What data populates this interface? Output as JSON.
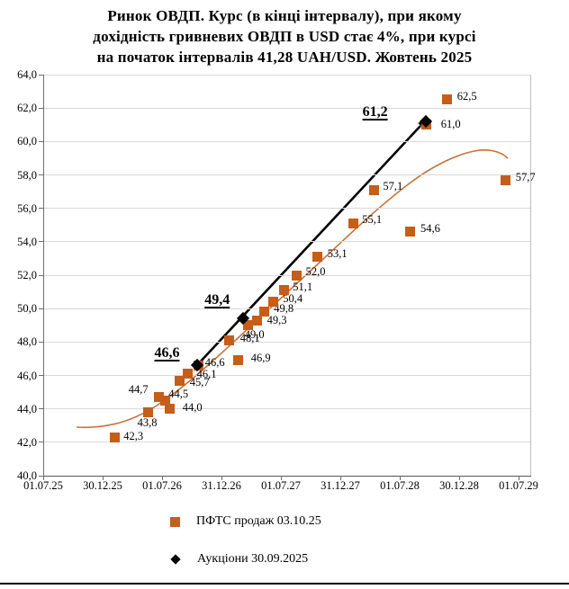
{
  "title": {
    "line1": "Ринок ОВДП. Курс (в кінці інтервалу), при якому",
    "line2": "дохідність гривневих ОВДП в USD стає  4%, при курсі",
    "line3": "на початок інтервалів 41,28 UAH/USD. Жовтень 2025"
  },
  "chart_data": {
    "type": "scatter",
    "title": "Ринок ОВДП. Курс (в кінці інтервалу), при якому дохідність гривневих ОВДП в USD стає 4%, при курсі на початок інтервалів 41,28 UAH/USD. Жовтень 2025",
    "grid": true,
    "legend_position": "bottom",
    "x_axis": {
      "kind": "dates",
      "tick_labels": [
        "01.07.25",
        "30.12.25",
        "01.07.26",
        "31.12.26",
        "01.07.27",
        "31.12.27",
        "01.07.28",
        "30.12.28",
        "01.07.29"
      ],
      "months_per_tick": 6
    },
    "y_axis": {
      "min": 40,
      "max": 64,
      "step": 2,
      "tick_labels": [
        "64,0",
        "62,0",
        "60,0",
        "58,0",
        "56,0",
        "54,0",
        "52,0",
        "50,0",
        "48,0",
        "46,0",
        "44,0",
        "42,0",
        "40,0"
      ]
    },
    "series": [
      {
        "name": "ПФТС продаж 03.10.25",
        "marker": "square",
        "color": "#c45e1a",
        "points": [
          {
            "x_m": 7.2,
            "value": 42.3,
            "label": "42,3",
            "dx": 10,
            "dy": -7
          },
          {
            "x_m": 10.6,
            "value": 43.8,
            "label": "43,8",
            "dx": -12,
            "dy": 6
          },
          {
            "x_m": 11.7,
            "value": 44.7,
            "label": "44,7",
            "dx": -34,
            "dy": -15
          },
          {
            "x_m": 12.3,
            "value": 44.5,
            "label": "44,5",
            "dx": 4,
            "dy": -13
          },
          {
            "x_m": 12.8,
            "value": 44.0,
            "label": "44,0",
            "dx": 14,
            "dy": -8
          },
          {
            "x_m": 13.8,
            "value": 45.7,
            "label": "45,7",
            "dx": 11,
            "dy": -4
          },
          {
            "x_m": 14.6,
            "value": 46.1,
            "label": "46,1",
            "dx": 10,
            "dy": -6
          },
          {
            "x_m": 15.7,
            "value": 46.6,
            "label": "46,6",
            "dx": 7,
            "dy": -9
          },
          {
            "x_m": 18.8,
            "value": 48.1,
            "label": "48,1",
            "dx": 12,
            "dy": -8
          },
          {
            "x_m": 19.7,
            "value": 46.9,
            "label": "46,9",
            "dx": 14,
            "dy": -9
          },
          {
            "x_m": 20.7,
            "value": 49.0,
            "label": "49,0",
            "dx": -4,
            "dy": 4
          },
          {
            "x_m": 21.6,
            "value": 49.3,
            "label": "49,3",
            "dx": 11,
            "dy": -6
          },
          {
            "x_m": 22.3,
            "value": 49.8,
            "label": "49,8",
            "dx": 11,
            "dy": -10
          },
          {
            "x_m": 23.2,
            "value": 50.4,
            "label": "50,4",
            "dx": 11,
            "dy": -10
          },
          {
            "x_m": 24.3,
            "value": 51.1,
            "label": "51,1",
            "dx": 10,
            "dy": -10
          },
          {
            "x_m": 25.6,
            "value": 52.0,
            "label": "52,0",
            "dx": 10,
            "dy": -10
          },
          {
            "x_m": 27.7,
            "value": 53.1,
            "label": "53,1",
            "dx": 11,
            "dy": -10
          },
          {
            "x_m": 31.3,
            "value": 55.1,
            "label": "55,1",
            "dx": 10,
            "dy": -10
          },
          {
            "x_m": 33.4,
            "value": 57.1,
            "label": "57,1",
            "dx": 10,
            "dy": -10
          },
          {
            "x_m": 37.0,
            "value": 54.6,
            "label": "54,6",
            "dx": 12,
            "dy": -10
          },
          {
            "x_m": 38.7,
            "value": 61.0,
            "label": "61,0",
            "dx": 16,
            "dy": -7
          },
          {
            "x_m": 40.8,
            "value": 62.5,
            "label": "62,5",
            "dx": 11,
            "dy": -10
          },
          {
            "x_m": 46.7,
            "value": 57.7,
            "label": "57,7",
            "dx": 11,
            "dy": -9
          }
        ],
        "trend": {
          "shape": "polynomial",
          "color": "#c87137"
        }
      },
      {
        "name": "Аукціони 30.09.2025",
        "marker": "diamond",
        "color": "#000000",
        "label_style": "bold-underline",
        "points": [
          {
            "x_m": 15.5,
            "value": 46.6,
            "label": "46,6",
            "dx": -47,
            "dy": -22
          },
          {
            "x_m": 20.2,
            "value": 49.4,
            "label": "49,4",
            "dx": -43,
            "dy": -29
          },
          {
            "x_m": 38.6,
            "value": 61.2,
            "label": "61,2",
            "dx": -70,
            "dy": -19
          }
        ],
        "trend": {
          "shape": "linear-arrow",
          "color": "#000000"
        }
      }
    ]
  },
  "legend": {
    "items": [
      {
        "label": "ПФТС  продаж 03.10.25",
        "marker": "square"
      },
      {
        "label": "Аукціони 30.09.2025",
        "marker": "diamond"
      }
    ]
  }
}
